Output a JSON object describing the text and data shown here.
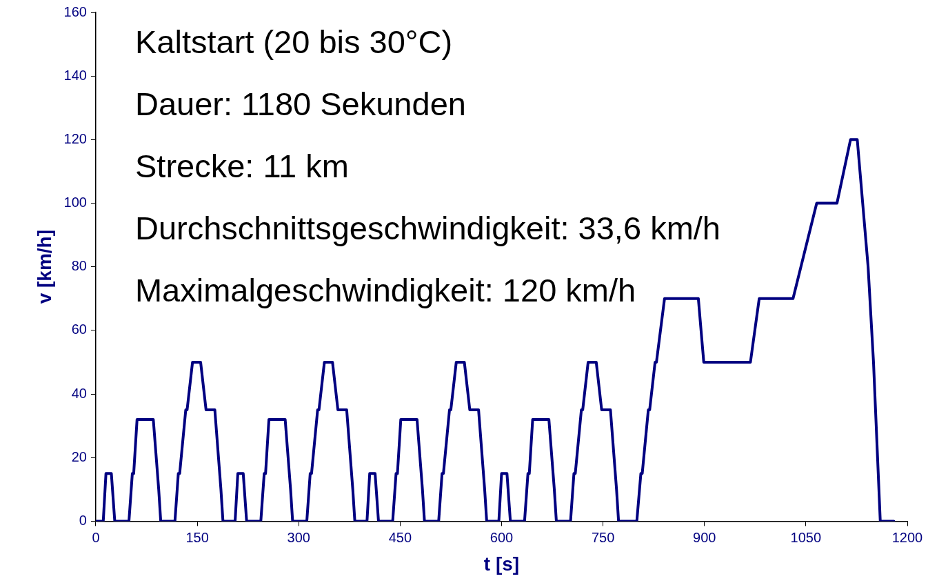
{
  "chart_data": {
    "type": "line",
    "xlabel": "t [s]",
    "ylabel": "v [km/h]",
    "xlim": [
      0,
      1200
    ],
    "xticks": [
      0,
      150,
      300,
      450,
      600,
      750,
      900,
      1050,
      1200
    ],
    "ylim": [
      0,
      160
    ],
    "yticks": [
      0,
      20,
      40,
      60,
      80,
      100,
      120,
      140,
      160
    ],
    "grid": false,
    "legend": false,
    "marker": "none",
    "line_style": "solid",
    "annotations": [
      "Kaltstart (20 bis 30°C)",
      "Dauer: 1180 Sekunden",
      "Strecke: 11 km",
      "Durchschnittsgeschwindigkeit: 33,6 km/h",
      "Maximalgeschwindigkeit: 120 km/h"
    ],
    "series": [
      {
        "color": "#000080",
        "x": [
          0,
          11,
          15,
          23,
          28,
          49,
          54,
          56,
          61,
          85,
          93,
          96,
          117,
          122,
          124,
          133,
          135,
          143,
          155,
          163,
          176,
          185,
          188,
          195,
          206,
          210,
          218,
          223,
          244,
          249,
          251,
          256,
          280,
          288,
          291,
          312,
          317,
          319,
          328,
          330,
          338,
          350,
          358,
          371,
          380,
          383,
          390,
          401,
          405,
          413,
          418,
          439,
          444,
          446,
          451,
          475,
          483,
          486,
          507,
          512,
          514,
          523,
          525,
          533,
          545,
          553,
          566,
          575,
          578,
          585,
          596,
          600,
          608,
          613,
          634,
          639,
          641,
          646,
          670,
          678,
          681,
          702,
          707,
          709,
          718,
          720,
          728,
          740,
          748,
          761,
          770,
          773,
          780,
          800,
          806,
          808,
          817,
          819,
          827,
          829,
          841,
          891,
          899,
          968,
          981,
          1031,
          1066,
          1096,
          1116,
          1126,
          1142,
          1150,
          1160,
          1180
        ],
        "values": [
          0,
          0,
          15,
          15,
          0,
          0,
          15,
          15,
          32,
          32,
          10,
          0,
          0,
          15,
          15,
          35,
          35,
          50,
          50,
          35,
          35,
          10,
          0,
          0,
          0,
          15,
          15,
          0,
          0,
          15,
          15,
          32,
          32,
          10,
          0,
          0,
          15,
          15,
          35,
          35,
          50,
          50,
          35,
          35,
          10,
          0,
          0,
          0,
          15,
          15,
          0,
          0,
          15,
          15,
          32,
          32,
          10,
          0,
          0,
          15,
          15,
          35,
          35,
          50,
          50,
          35,
          35,
          10,
          0,
          0,
          0,
          15,
          15,
          0,
          0,
          15,
          15,
          32,
          32,
          10,
          0,
          0,
          15,
          15,
          35,
          35,
          50,
          50,
          35,
          35,
          10,
          0,
          0,
          0,
          15,
          15,
          35,
          35,
          50,
          50,
          70,
          70,
          50,
          50,
          70,
          70,
          100,
          100,
          120,
          120,
          80,
          50,
          0,
          0
        ]
      }
    ]
  }
}
